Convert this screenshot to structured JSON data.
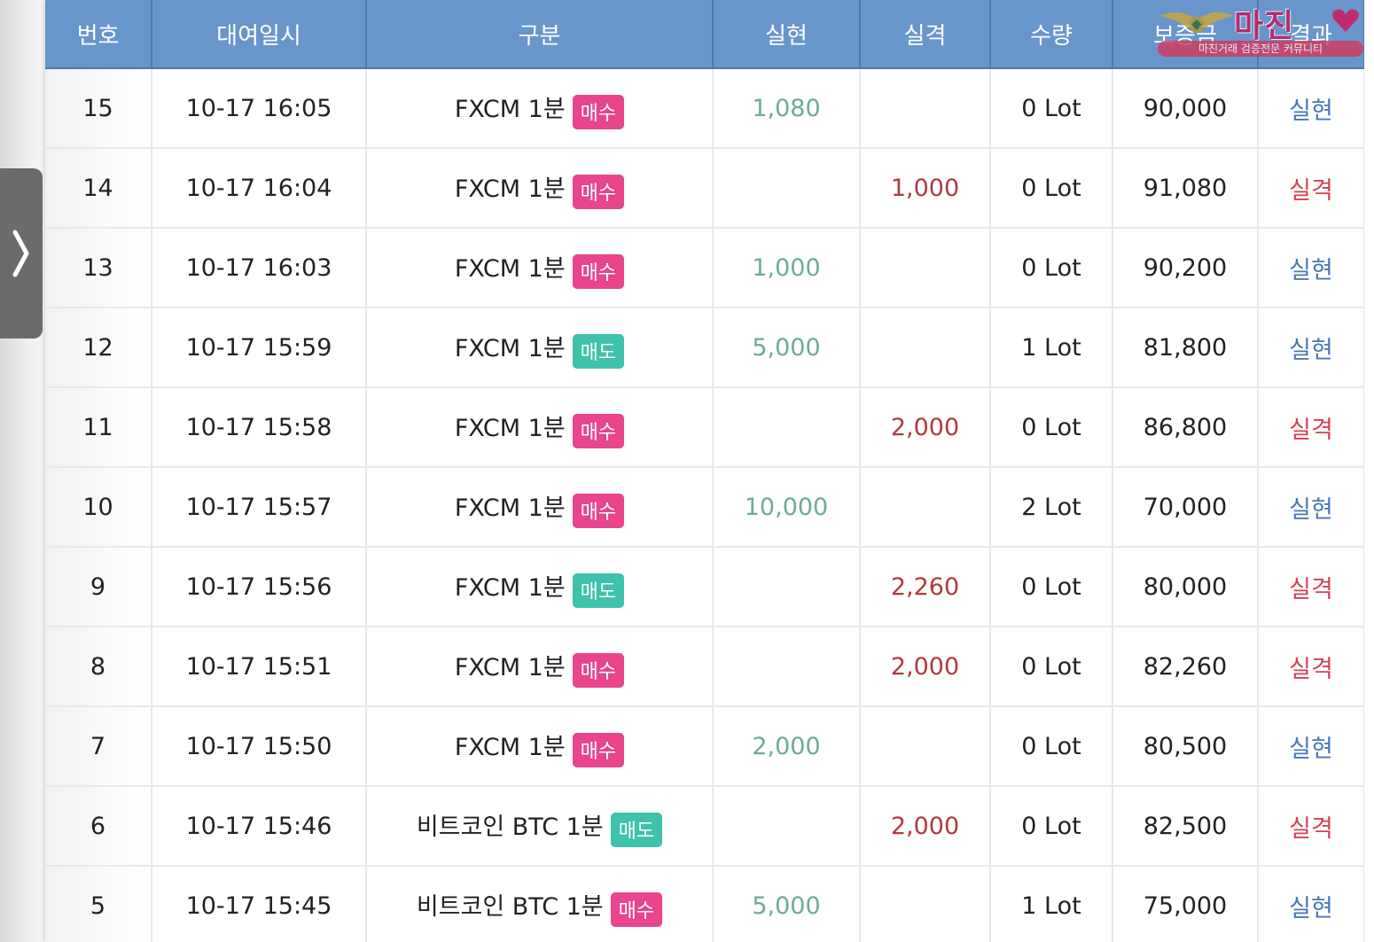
{
  "header": {
    "columns": [
      "번호",
      "대여일시",
      "구분",
      "실현",
      "실격",
      "수량",
      "보증금",
      "결과"
    ]
  },
  "watermark": {
    "brand": "마진",
    "tagline": "마진거래 검증전문 커뮤니티"
  },
  "colors": {
    "header_bg": "#6896cb",
    "buy_badge": "#e8458c",
    "sell_badge": "#3fc2ab",
    "profit_text": "#6eaa9c",
    "loss_text": "#b23a3a",
    "result_profit": "#4a78b4",
    "result_loss": "#d2434e"
  },
  "side_tab": {
    "icon": "chevron-right-icon"
  },
  "rows": [
    {
      "no": "15",
      "datetime": "10-17 16:05",
      "product": "FXCM 1분",
      "side": "매수",
      "side_type": "buy",
      "profit": "1,080",
      "loss": "",
      "quantity": "0 Lot",
      "deposit": "90,000",
      "result": "실현",
      "result_type": "profit"
    },
    {
      "no": "14",
      "datetime": "10-17 16:04",
      "product": "FXCM 1분",
      "side": "매수",
      "side_type": "buy",
      "profit": "",
      "loss": "1,000",
      "quantity": "0 Lot",
      "deposit": "91,080",
      "result": "실격",
      "result_type": "loss"
    },
    {
      "no": "13",
      "datetime": "10-17 16:03",
      "product": "FXCM 1분",
      "side": "매수",
      "side_type": "buy",
      "profit": "1,000",
      "loss": "",
      "quantity": "0 Lot",
      "deposit": "90,200",
      "result": "실현",
      "result_type": "profit"
    },
    {
      "no": "12",
      "datetime": "10-17 15:59",
      "product": "FXCM 1분",
      "side": "매도",
      "side_type": "sell",
      "profit": "5,000",
      "loss": "",
      "quantity": "1 Lot",
      "deposit": "81,800",
      "result": "실현",
      "result_type": "profit"
    },
    {
      "no": "11",
      "datetime": "10-17 15:58",
      "product": "FXCM 1분",
      "side": "매수",
      "side_type": "buy",
      "profit": "",
      "loss": "2,000",
      "quantity": "0 Lot",
      "deposit": "86,800",
      "result": "실격",
      "result_type": "loss"
    },
    {
      "no": "10",
      "datetime": "10-17 15:57",
      "product": "FXCM 1분",
      "side": "매수",
      "side_type": "buy",
      "profit": "10,000",
      "loss": "",
      "quantity": "2 Lot",
      "deposit": "70,000",
      "result": "실현",
      "result_type": "profit"
    },
    {
      "no": "9",
      "datetime": "10-17 15:56",
      "product": "FXCM 1분",
      "side": "매도",
      "side_type": "sell",
      "profit": "",
      "loss": "2,260",
      "quantity": "0 Lot",
      "deposit": "80,000",
      "result": "실격",
      "result_type": "loss"
    },
    {
      "no": "8",
      "datetime": "10-17 15:51",
      "product": "FXCM 1분",
      "side": "매수",
      "side_type": "buy",
      "profit": "",
      "loss": "2,000",
      "quantity": "0 Lot",
      "deposit": "82,260",
      "result": "실격",
      "result_type": "loss"
    },
    {
      "no": "7",
      "datetime": "10-17 15:50",
      "product": "FXCM 1분",
      "side": "매수",
      "side_type": "buy",
      "profit": "2,000",
      "loss": "",
      "quantity": "0 Lot",
      "deposit": "80,500",
      "result": "실현",
      "result_type": "profit"
    },
    {
      "no": "6",
      "datetime": "10-17 15:46",
      "product": "비트코인 BTC 1분",
      "side": "매도",
      "side_type": "sell",
      "profit": "",
      "loss": "2,000",
      "quantity": "0 Lot",
      "deposit": "82,500",
      "result": "실격",
      "result_type": "loss"
    },
    {
      "no": "5",
      "datetime": "10-17 15:45",
      "product": "비트코인 BTC 1분",
      "side": "매수",
      "side_type": "buy",
      "profit": "5,000",
      "loss": "",
      "quantity": "1 Lot",
      "deposit": "75,000",
      "result": "실현",
      "result_type": "profit"
    }
  ]
}
